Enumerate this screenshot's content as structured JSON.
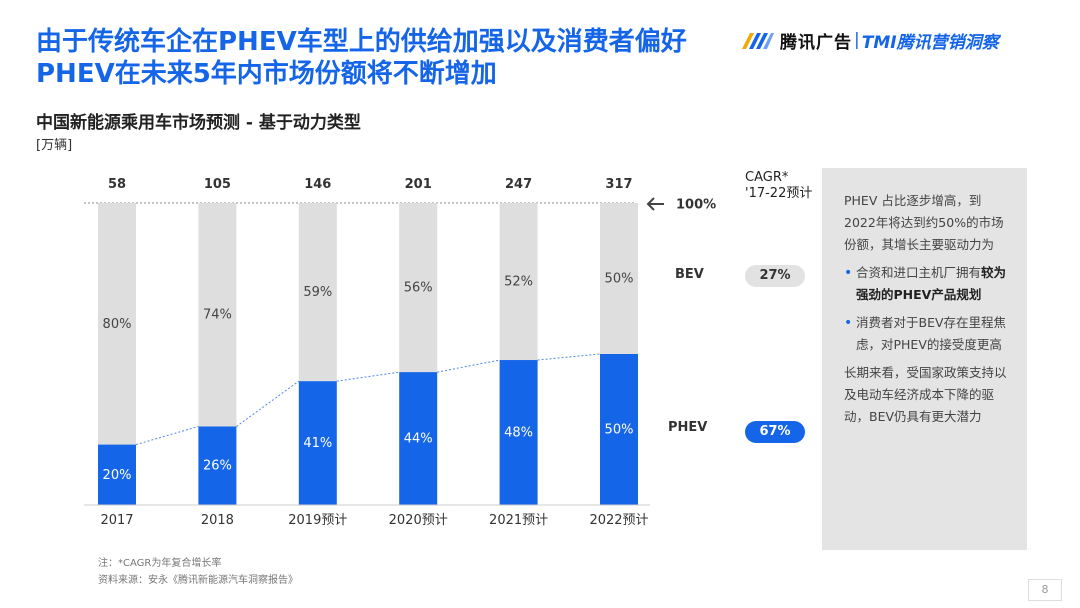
{
  "headline": {
    "line1": "由于传统车企在PHEV车型上的供给加强以及消费者偏好",
    "line2": "PHEV在未来5年内市场份额将不断增加"
  },
  "logo": {
    "brand": "腾讯广告",
    "separator": "|",
    "sub": "TMI腾讯营销洞察",
    "accent": "#1565e8"
  },
  "subtitle": "中国新能源乘用车市场预测 - 基于动力类型",
  "unit": "[万辆]",
  "chart_data": {
    "type": "bar",
    "stacked": true,
    "normalized": true,
    "categories": [
      "2017",
      "2018",
      "2019预计",
      "2020预计",
      "2021预计",
      "2022预计"
    ],
    "totals": [
      58,
      105,
      146,
      201,
      247,
      317
    ],
    "series": [
      {
        "name": "PHEV",
        "values": [
          20,
          26,
          41,
          44,
          48,
          50
        ],
        "labels": [
          "20%",
          "26%",
          "41%",
          "44%",
          "48%",
          "50%"
        ],
        "color": "#1565e8"
      },
      {
        "name": "BEV",
        "values": [
          80,
          74,
          59,
          56,
          52,
          50
        ],
        "labels": [
          "80%",
          "74%",
          "59%",
          "56%",
          "52%",
          "50%"
        ],
        "color": "#dedede"
      }
    ],
    "ylim": [
      0,
      100
    ],
    "reference_line_label": "100%",
    "trend_line": "PHEV",
    "grid": false,
    "cagr": {
      "header_line1": "CAGR*",
      "header_line2": "'17-22预计",
      "BEV": "27%",
      "PHEV": "67%"
    }
  },
  "panel": {
    "intro": "PHEV 占比逐步增高，到2022年将达到约50%的市场份额，其增长主要驱动力为",
    "bullet1_pre": "合资和进口主机厂拥有",
    "bullet1_bold": "较为强劲的PHEV产品规划",
    "bullet2": "消费者对于BEV存在里程焦虑，对PHEV的接受度更高",
    "outro": "长期来看，受国家政策支持以及电动车经济成本下降的驱动，BEV仍具有更大潜力"
  },
  "notes": {
    "note": "注：*CAGR为年复合增长率",
    "source": "资料来源：安永《腾讯新能源汽车洞察报告》"
  },
  "page_number": "8"
}
